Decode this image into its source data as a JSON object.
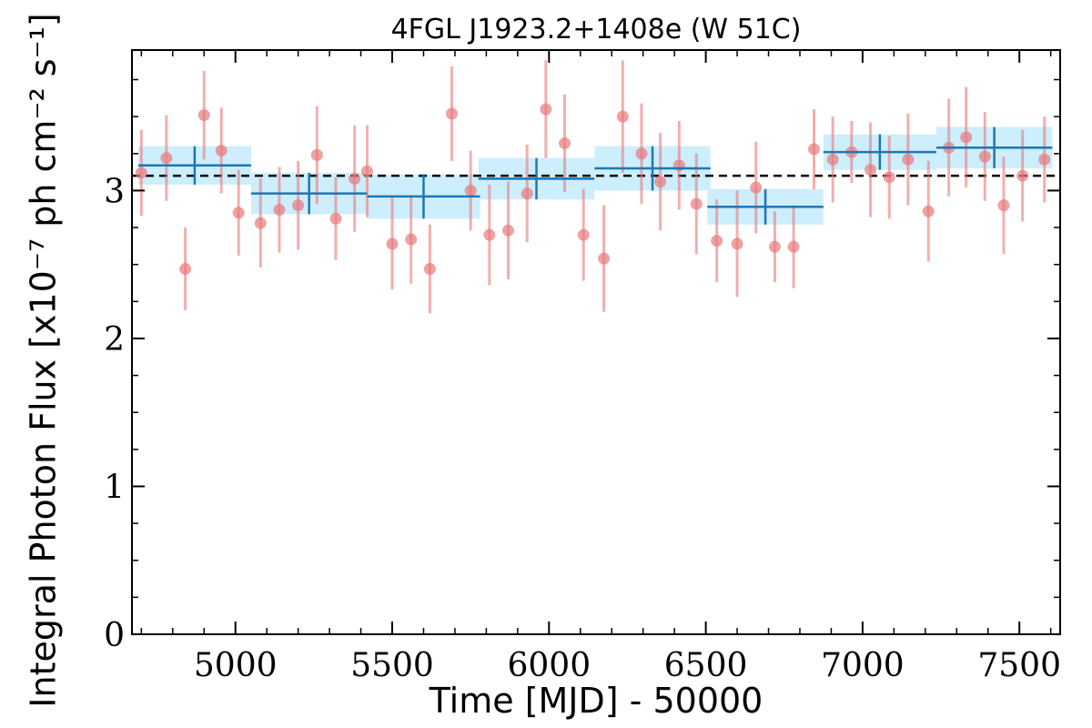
{
  "chart_data": {
    "type": "scatter",
    "title": "4FGL J1923.2+1408e (W 51C)",
    "xlabel": "Time [MJD] - 50000",
    "ylabel": "Integral Photon Flux [x10⁻⁷ ph cm⁻² s⁻¹]",
    "xlim": [
      4670,
      7630
    ],
    "ylim": [
      0,
      3.95
    ],
    "xticks": [
      5000,
      5500,
      6000,
      6500,
      7000,
      7500
    ],
    "yticks": [
      0,
      1,
      2,
      3
    ],
    "xtick_labels": [
      "5000",
      "5500",
      "6000",
      "6500",
      "7000",
      "7500"
    ],
    "ytick_labels": [
      "0",
      "1",
      "2",
      "3"
    ],
    "mean_flux": 3.1,
    "colors": {
      "points": "#e8797c",
      "bins": "#1f77b4",
      "bin_band": "#cdeefc",
      "mean_line": "#000000"
    },
    "series": [
      {
        "x": [
          4700,
          4780,
          4840,
          4900,
          4955,
          5010,
          5080,
          5140,
          5200,
          5260,
          5320,
          5380,
          5420,
          5500,
          5560,
          5620,
          5690,
          5750,
          5810,
          5870,
          5930,
          5990,
          6050,
          6110,
          6175,
          6235,
          6295,
          6355,
          6415,
          6470,
          6535,
          6600,
          6660,
          6720,
          6780,
          6845,
          6905,
          6965,
          7025,
          7085,
          7145,
          7210,
          7275,
          7330,
          7390,
          7450,
          7510,
          7580
        ],
        "y": [
          3.12,
          3.22,
          2.47,
          3.51,
          3.27,
          2.85,
          2.78,
          2.87,
          2.9,
          3.24,
          2.81,
          3.08,
          3.13,
          2.64,
          2.67,
          2.47,
          3.52,
          3.0,
          2.7,
          2.73,
          2.98,
          3.55,
          3.32,
          2.7,
          2.54,
          3.5,
          3.25,
          3.06,
          3.17,
          2.91,
          2.66,
          2.64,
          3.02,
          2.62,
          2.62,
          3.28,
          3.21,
          3.26,
          3.14,
          3.09,
          3.21,
          2.86,
          3.29,
          3.36,
          3.23,
          2.9,
          3.1,
          3.21
        ],
        "yerr": [
          0.29,
          0.29,
          0.28,
          0.3,
          0.29,
          0.29,
          0.3,
          0.29,
          0.3,
          0.33,
          0.28,
          0.36,
          0.31,
          0.31,
          0.3,
          0.3,
          0.32,
          0.27,
          0.34,
          0.33,
          0.33,
          0.33,
          0.33,
          0.31,
          0.36,
          0.38,
          0.34,
          0.33,
          0.3,
          0.34,
          0.28,
          0.36,
          0.31,
          0.24,
          0.28,
          0.27,
          0.29,
          0.21,
          0.32,
          0.28,
          0.31,
          0.34,
          0.33,
          0.34,
          0.3,
          0.33,
          0.31,
          0.29
        ]
      },
      {
        "x": [
          4870,
          5235,
          5600,
          5960,
          6330,
          6690,
          7055,
          7420
        ],
        "y": [
          3.17,
          2.98,
          2.96,
          3.08,
          3.15,
          2.89,
          3.26,
          3.29
        ],
        "xerr": [
          180,
          185,
          180,
          185,
          185,
          185,
          180,
          185
        ],
        "yerr": [
          0.13,
          0.14,
          0.15,
          0.14,
          0.15,
          0.12,
          0.12,
          0.14
        ]
      }
    ]
  }
}
